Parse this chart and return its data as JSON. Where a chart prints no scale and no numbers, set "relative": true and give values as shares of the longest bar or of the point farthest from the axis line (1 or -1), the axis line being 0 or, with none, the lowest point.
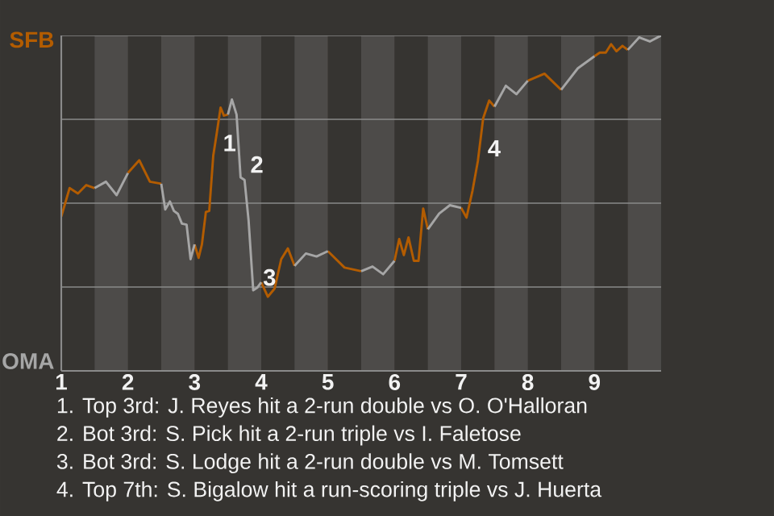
{
  "chart_data": {
    "type": "line",
    "relative": true,
    "x": [
      1,
      1.125,
      1.25,
      1.375,
      1.5,
      1.67,
      1.83,
      2,
      2.17,
      2.33,
      2.5,
      2.56,
      2.63,
      2.69,
      2.75,
      2.81,
      2.88,
      2.94,
      3,
      3.06,
      3.11,
      3.17,
      3.22,
      3.28,
      3.33,
      3.39,
      3.44,
      3.5,
      3.56,
      3.63,
      3.69,
      3.75,
      3.81,
      3.88,
      3.94,
      4,
      4.1,
      4.2,
      4.3,
      4.4,
      4.5,
      4.67,
      4.83,
      5,
      5.25,
      5.5,
      5.67,
      5.83,
      6,
      6.07,
      6.14,
      6.21,
      6.29,
      6.36,
      6.43,
      6.5,
      6.67,
      6.83,
      7,
      7.08,
      7.17,
      7.25,
      7.33,
      7.42,
      7.5,
      7.67,
      7.83,
      8,
      8.25,
      8.5,
      8.75,
      9,
      9.08,
      9.17,
      9.25,
      9.33,
      9.42,
      9.5,
      9.67,
      9.83,
      10
    ],
    "series": [
      {
        "color": "#b35c00",
        "values": [
          0.46,
          0.545,
          0.529,
          0.554,
          0.545,
          null,
          null,
          0.59,
          0.628,
          0.564,
          0.558,
          null,
          null,
          null,
          null,
          null,
          null,
          null,
          0.377,
          0.337,
          0.377,
          0.474,
          0.477,
          0.641,
          0.705,
          0.785,
          0.761,
          0.764,
          null,
          null,
          null,
          null,
          null,
          null,
          null,
          0.264,
          0.221,
          0.245,
          0.333,
          0.365,
          0.313,
          null,
          null,
          0.357,
          0.308,
          0.297,
          null,
          null,
          0.328,
          0.393,
          0.345,
          0.398,
          0.328,
          0.328,
          0.484,
          0.422,
          null,
          null,
          0.486,
          0.457,
          0.537,
          0.625,
          0.753,
          0.806,
          0.788,
          null,
          null,
          0.865,
          0.886,
          0.838,
          null,
          0.938,
          0.949,
          0.949,
          0.974,
          0.953,
          0.969,
          0.957,
          null,
          null,
          null
        ]
      },
      {
        "color": "#a6a6a6",
        "values": [
          null,
          null,
          null,
          null,
          0.545,
          0.564,
          0.524,
          0.59,
          null,
          null,
          0.558,
          0.481,
          0.505,
          0.477,
          0.468,
          0.439,
          0.436,
          0.333,
          0.377,
          null,
          null,
          null,
          null,
          null,
          null,
          null,
          null,
          0.764,
          0.809,
          0.764,
          0.577,
          0.569,
          0.449,
          0.24,
          0.248,
          0.264,
          null,
          null,
          null,
          null,
          0.313,
          0.35,
          0.341,
          0.357,
          null,
          0.297,
          0.311,
          0.288,
          0.328,
          null,
          null,
          null,
          null,
          null,
          null,
          0.422,
          0.469,
          0.494,
          0.486,
          null,
          null,
          null,
          null,
          null,
          0.788,
          0.85,
          0.825,
          0.865,
          null,
          0.838,
          0.902,
          0.938,
          null,
          null,
          null,
          null,
          null,
          0.957,
          0.994,
          0.982,
          1
        ]
      }
    ],
    "xlim": [
      1,
      10
    ],
    "xticks": [
      1,
      2,
      3,
      4,
      5,
      6,
      7,
      8,
      9
    ],
    "grid": "y",
    "bands": [
      {
        "axis": "x",
        "from": 1.5,
        "to": 2,
        "color": "#4d4b49"
      },
      {
        "axis": "x",
        "from": 2.5,
        "to": 3,
        "color": "#4d4b49"
      },
      {
        "axis": "x",
        "from": 3.5,
        "to": 4,
        "color": "#4d4b49"
      },
      {
        "axis": "x",
        "from": 4.5,
        "to": 5,
        "color": "#4d4b49"
      },
      {
        "axis": "x",
        "from": 5.5,
        "to": 6,
        "color": "#4d4b49"
      },
      {
        "axis": "x",
        "from": 6.5,
        "to": 7,
        "color": "#4d4b49"
      },
      {
        "axis": "x",
        "from": 7.5,
        "to": 8,
        "color": "#4d4b49"
      },
      {
        "axis": "x",
        "from": 8.5,
        "to": 9,
        "color": "#4d4b49"
      },
      {
        "axis": "x",
        "from": 9.5,
        "to": 10,
        "color": "#4d4b49"
      }
    ],
    "annotations": [
      "SFB",
      "OMA",
      {
        "text": "1",
        "x": 3.28,
        "y": 0.641
      },
      {
        "text": "2",
        "x": 3.69,
        "y": 0.577
      },
      {
        "text": "3",
        "x": 3.88,
        "y": 0.24
      },
      {
        "text": "4",
        "x": 7.25,
        "y": 0.625
      },
      "1. Top 3rd: J. Reyes hit a 2-run double vs O. O'Halloran",
      "2. Bot 3rd: S. Pick hit a 2-run triple vs I. Faletose",
      "3. Bot 3rd: S. Lodge hit a 2-run double vs M. Tomsett",
      "4. Top 7th: S. Bigalow hit a run-scoring triple vs J. Huerta"
    ]
  }
}
